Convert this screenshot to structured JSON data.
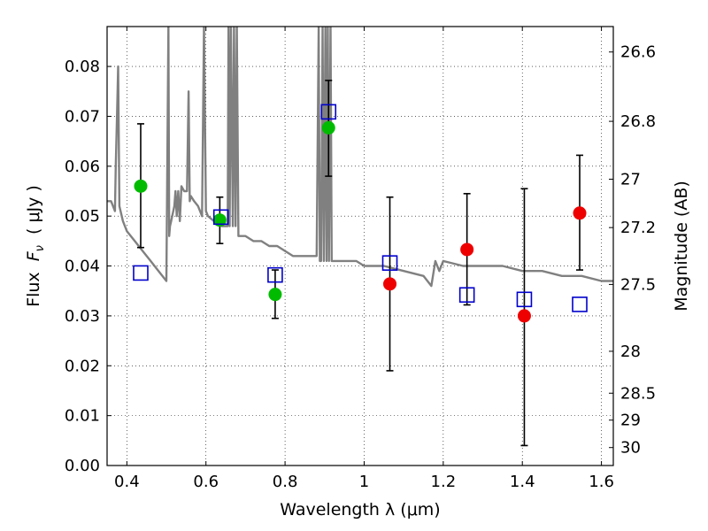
{
  "chart_data": {
    "type": "scatter",
    "xlabel": "Wavelength  λ (μm)",
    "ylabel": "Flux  F_ν  ( μJy )",
    "ylabel_parts": {
      "prefix": "Flux  ",
      "symbol": "F",
      "subscript": "ν",
      "suffix": "  ( μJy )"
    },
    "y2label": "Magnitude (AB)",
    "xlim": [
      0.35,
      1.63
    ],
    "ylim": [
      0.0,
      0.088
    ],
    "grid": true,
    "x_ticks": [
      0.4,
      0.6,
      0.8,
      1.0,
      1.2,
      1.4,
      1.6
    ],
    "x_tick_labels": [
      "0.4",
      "0.6",
      "0.8",
      "1",
      "1.2",
      "1.4",
      "1.6"
    ],
    "y_ticks": [
      0.0,
      0.01,
      0.02,
      0.03,
      0.04,
      0.05,
      0.06,
      0.07,
      0.08
    ],
    "y_tick_labels": [
      "0.00",
      "0.01",
      "0.02",
      "0.03",
      "0.04",
      "0.05",
      "0.06",
      "0.07",
      "0.08"
    ],
    "y2_ticks": [
      {
        "label": "26.6",
        "flux": 0.0829
      },
      {
        "label": "26.8",
        "flux": 0.069
      },
      {
        "label": "27",
        "flux": 0.0574
      },
      {
        "label": "27.2",
        "flux": 0.0477
      },
      {
        "label": "27.5",
        "flux": 0.0363
      },
      {
        "label": "28",
        "flux": 0.0229
      },
      {
        "label": "28.5",
        "flux": 0.0145
      },
      {
        "label": "29",
        "flux": 0.0091
      },
      {
        "label": "30",
        "flux": 0.0036
      }
    ],
    "observed_detections": {
      "color": "#00bb00",
      "points": [
        {
          "x": 0.435,
          "y": 0.056,
          "yerr_low": 0.0437,
          "yerr_high": 0.0685
        },
        {
          "x": 0.635,
          "y": 0.0492,
          "yerr_low": 0.0445,
          "yerr_high": 0.0538
        },
        {
          "x": 0.775,
          "y": 0.0343,
          "yerr_low": 0.0295,
          "yerr_high": 0.0392
        },
        {
          "x": 0.91,
          "y": 0.0677,
          "yerr_low": 0.058,
          "yerr_high": 0.0772
        }
      ]
    },
    "observed_upper": {
      "color": "#ee0000",
      "points": [
        {
          "x": 1.065,
          "y": 0.0364,
          "yerr_low": 0.019,
          "yerr_high": 0.0538
        },
        {
          "x": 1.26,
          "y": 0.0433,
          "yerr_low": 0.0322,
          "yerr_high": 0.0545
        },
        {
          "x": 1.405,
          "y": 0.03,
          "yerr_low": 0.004,
          "yerr_high": 0.0555
        },
        {
          "x": 1.545,
          "y": 0.0506,
          "yerr_low": 0.0392,
          "yerr_high": 0.0622
        }
      ]
    },
    "model_photometry": {
      "color": "#0000cc",
      "points": [
        {
          "x": 0.435,
          "y": 0.0386
        },
        {
          "x": 0.638,
          "y": 0.0498
        },
        {
          "x": 0.775,
          "y": 0.0382
        },
        {
          "x": 0.91,
          "y": 0.0709
        },
        {
          "x": 1.065,
          "y": 0.0406
        },
        {
          "x": 1.26,
          "y": 0.0342
        },
        {
          "x": 1.405,
          "y": 0.0333
        },
        {
          "x": 1.545,
          "y": 0.0323
        }
      ]
    },
    "model_spectrum": {
      "color": "#808080",
      "x": [
        0.35,
        0.36,
        0.37,
        0.372,
        0.375,
        0.378,
        0.381,
        0.39,
        0.4,
        0.42,
        0.44,
        0.46,
        0.48,
        0.5,
        0.505,
        0.507,
        0.509,
        0.512,
        0.52,
        0.523,
        0.526,
        0.53,
        0.534,
        0.538,
        0.545,
        0.552,
        0.556,
        0.559,
        0.562,
        0.57,
        0.58,
        0.59,
        0.595,
        0.6,
        0.605,
        0.62,
        0.64,
        0.655,
        0.657,
        0.66,
        0.663,
        0.668,
        0.671,
        0.675,
        0.678,
        0.682,
        0.7,
        0.72,
        0.74,
        0.76,
        0.78,
        0.8,
        0.82,
        0.84,
        0.86,
        0.88,
        0.885,
        0.888,
        0.891,
        0.895,
        0.898,
        0.902,
        0.905,
        0.908,
        0.911,
        0.915,
        0.918,
        0.92,
        0.94,
        0.96,
        0.98,
        1.0,
        1.05,
        1.1,
        1.15,
        1.17,
        1.18,
        1.19,
        1.2,
        1.25,
        1.3,
        1.35,
        1.4,
        1.45,
        1.5,
        1.55,
        1.6,
        1.63
      ],
      "y": [
        0.053,
        0.053,
        0.051,
        0.06,
        0.07,
        0.08,
        0.052,
        0.049,
        0.047,
        0.045,
        0.043,
        0.041,
        0.039,
        0.037,
        0.088,
        0.046,
        0.048,
        0.049,
        0.052,
        0.055,
        0.05,
        0.055,
        0.049,
        0.056,
        0.055,
        0.055,
        0.075,
        0.053,
        0.054,
        0.053,
        0.052,
        0.05,
        0.088,
        0.051,
        0.05,
        0.049,
        0.048,
        0.048,
        0.088,
        0.048,
        0.088,
        0.048,
        0.088,
        0.048,
        0.088,
        0.046,
        0.046,
        0.045,
        0.045,
        0.044,
        0.044,
        0.043,
        0.042,
        0.042,
        0.042,
        0.042,
        0.088,
        0.041,
        0.041,
        0.088,
        0.041,
        0.088,
        0.041,
        0.088,
        0.041,
        0.088,
        0.041,
        0.041,
        0.041,
        0.041,
        0.041,
        0.04,
        0.04,
        0.039,
        0.038,
        0.036,
        0.041,
        0.039,
        0.041,
        0.04,
        0.04,
        0.04,
        0.039,
        0.039,
        0.038,
        0.038,
        0.037,
        0.037
      ]
    }
  }
}
